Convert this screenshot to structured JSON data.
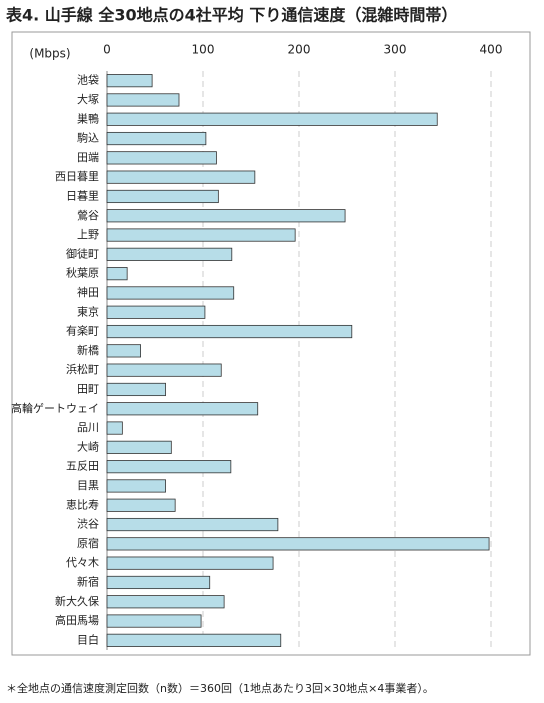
{
  "chart_data": {
    "type": "hbar",
    "title": "表4. 山手線 全30地点の4社平均 下り通信速度（混雑時間帯）",
    "unit_label": "(Mbps)",
    "note": "＊全地点の通信速度測定回数（n数）＝360回（1地点あたり3回×30地点×4事業者）。",
    "categories": [
      "池袋",
      "大塚",
      "巣鴨",
      "駒込",
      "田端",
      "西日暮里",
      "日暮里",
      "鶯谷",
      "上野",
      "御徒町",
      "秋葉原",
      "神田",
      "東京",
      "有楽町",
      "新橋",
      "浜松町",
      "田町",
      "高輪ゲートウェイ",
      "品川",
      "大崎",
      "五反田",
      "目黒",
      "恵比寿",
      "渋谷",
      "原宿",
      "代々木",
      "新宿",
      "新大久保",
      "高田馬場",
      "目白"
    ],
    "values": [
      47,
      75,
      344,
      103,
      114,
      154,
      116,
      248,
      196,
      130,
      21,
      132,
      102,
      255,
      35,
      119,
      61,
      157,
      16,
      67,
      129,
      61,
      71,
      178,
      398,
      173,
      107,
      122,
      98,
      181
    ],
    "color": "#b7dde8",
    "xlim": [
      0,
      400
    ],
    "xticks": [
      0,
      100,
      200,
      300,
      400
    ],
    "grid": true
  }
}
